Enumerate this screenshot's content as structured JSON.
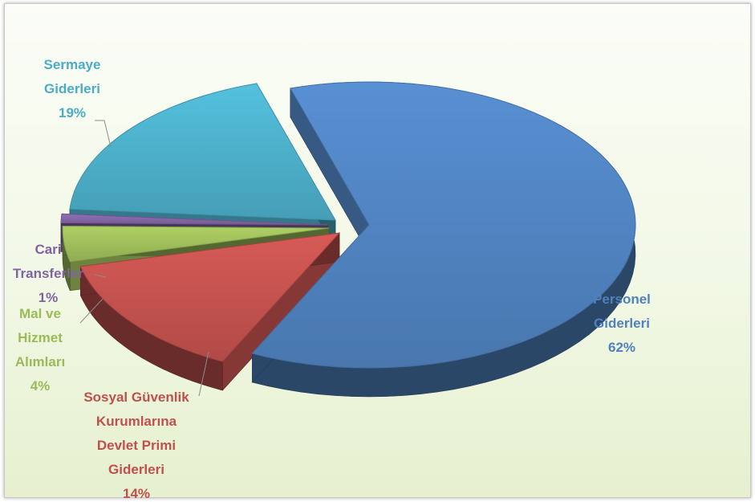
{
  "chart_data": {
    "type": "pie",
    "title": "",
    "style": "3d-exploded",
    "slices": [
      {
        "label_lines": [
          "Personel",
          "Giderleri"
        ],
        "percent_label": "62%",
        "value": 62,
        "color": "#4f81bd"
      },
      {
        "label_lines": [
          "Sosyal Güvenlik",
          "Kurumlarına",
          "Devlet Primi",
          "Giderleri"
        ],
        "percent_label": "14%",
        "value": 14,
        "color": "#c0504d"
      },
      {
        "label_lines": [
          "Mal ve",
          "Hizmet",
          "Alımları"
        ],
        "percent_label": "4%",
        "value": 4,
        "color": "#9bbb59"
      },
      {
        "label_lines": [
          "Cari",
          "Transferler"
        ],
        "percent_label": "1%",
        "value": 1,
        "color": "#8064a2"
      },
      {
        "label_lines": [
          "Sermaye",
          "Giderleri"
        ],
        "percent_label": "19%",
        "value": 19,
        "color": "#4bacc6"
      }
    ]
  }
}
